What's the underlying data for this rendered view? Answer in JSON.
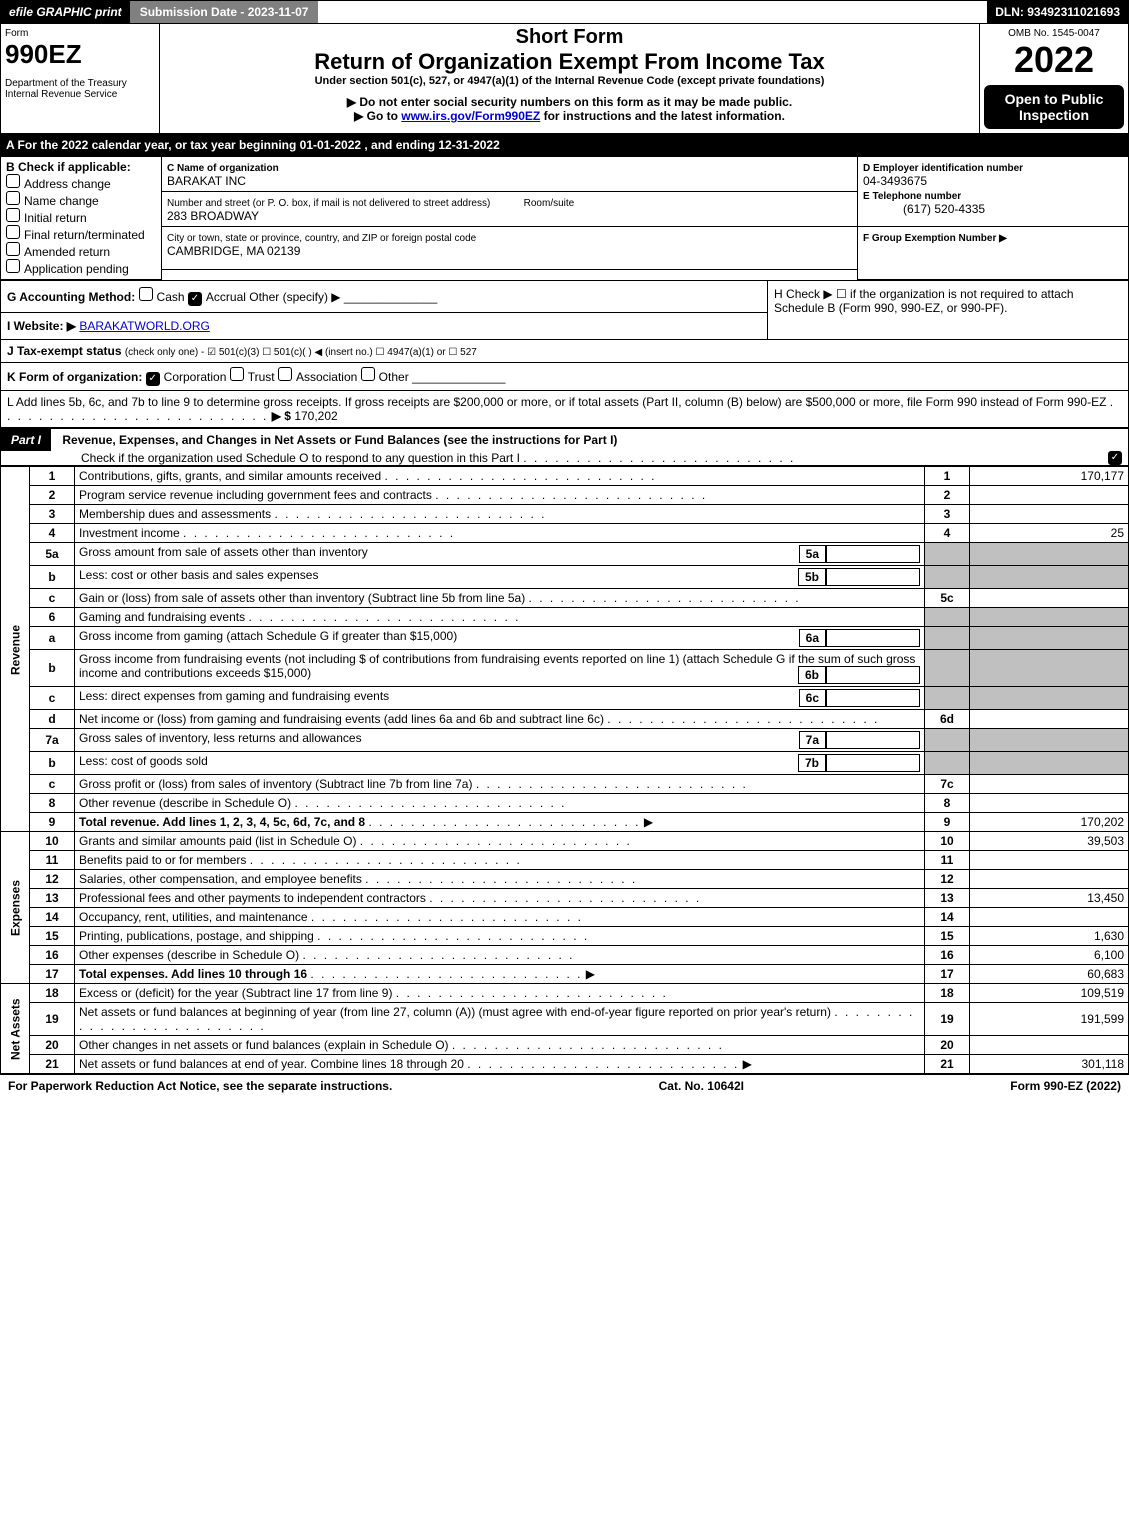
{
  "topBar": {
    "graphicBtn": "efile GRAPHIC print",
    "submissionBtn": "Submission Date - 2023-11-07",
    "dln": "DLN: 93492311021693"
  },
  "header": {
    "formWord": "Form",
    "formName": "990EZ",
    "deptLine1": "Department of the Treasury",
    "deptLine2": "Internal Revenue Service",
    "omb": "OMB No. 1545-0047",
    "year": "2022",
    "titleShort": "Short Form",
    "titleMain": "Return of Organization Exempt From Income Tax",
    "under": "Under section 501(c), 527, or 4947(a)(1) of the Internal Revenue Code (except private foundations)",
    "bullet1": "▶ Do not enter social security numbers on this form as it may be made public.",
    "bullet2pre": "▶ Go to ",
    "bullet2link": "www.irs.gov/Form990EZ",
    "bullet2post": " for instructions and the latest information.",
    "openTo": "Open to Public Inspection"
  },
  "lineA": "A  For the 2022 calendar year, or tax year beginning 01-01-2022 , and ending 12-31-2022",
  "boxB": {
    "heading": "B  Check if applicable:",
    "opts": [
      "Address change",
      "Name change",
      "Initial return",
      "Final return/terminated",
      "Amended return",
      "Application pending"
    ]
  },
  "boxC": {
    "labelName": "C Name of organization",
    "orgName": "BARAKAT INC",
    "labelStreet": "Number and street (or P. O. box, if mail is not delivered to street address)",
    "street": "283 BROADWAY",
    "roomLabel": "Room/suite",
    "labelCity": "City or town, state or province, country, and ZIP or foreign postal code",
    "city": "CAMBRIDGE, MA  02139"
  },
  "boxD": {
    "label": "D Employer identification number",
    "value": "04-3493675"
  },
  "boxE": {
    "label": "E Telephone number",
    "value": "(617) 520-4335"
  },
  "boxF": {
    "label": "F Group Exemption Number  ▶"
  },
  "lineG": {
    "label": "G Accounting Method:",
    "cash": "Cash",
    "accrual": "Accrual",
    "other": "Other (specify) ▶"
  },
  "lineH": {
    "text": "H  Check ▶  ☐  if the organization is not required to attach Schedule B (Form 990, 990-EZ, or 990-PF)."
  },
  "lineI": {
    "label": "I Website: ▶",
    "value": "BARAKATWORLD.ORG"
  },
  "lineJ": {
    "label": "J Tax-exempt status",
    "detail": "(check only one) - ☑ 501(c)(3) ☐ 501(c)(  ) ◀ (insert no.) ☐ 4947(a)(1) or ☐ 527"
  },
  "lineK": {
    "label": "K Form of organization:",
    "corp": "Corporation",
    "trust": "Trust",
    "assoc": "Association",
    "other": "Other"
  },
  "lineL": {
    "text": "L Add lines 5b, 6c, and 7b to line 9 to determine gross receipts. If gross receipts are $200,000 or more, or if total assets (Part II, column (B) below) are $500,000 or more, file Form 990 instead of Form 990-EZ",
    "arrow": "▶ $",
    "value": "170,202"
  },
  "part1": {
    "label": "Part I",
    "title": "Revenue, Expenses, and Changes in Net Assets or Fund Balances (see the instructions for Part I)",
    "checkLine": "Check if the organization used Schedule O to respond to any question in this Part I"
  },
  "sectionLabels": {
    "revenue": "Revenue",
    "expenses": "Expenses",
    "netassets": "Net Assets"
  },
  "lines": [
    {
      "n": "1",
      "label": "Contributions, gifts, grants, and similar amounts received",
      "num": "1",
      "amt": "170,177"
    },
    {
      "n": "2",
      "label": "Program service revenue including government fees and contracts",
      "num": "2",
      "amt": ""
    },
    {
      "n": "3",
      "label": "Membership dues and assessments",
      "num": "3",
      "amt": ""
    },
    {
      "n": "4",
      "label": "Investment income",
      "num": "4",
      "amt": "25"
    },
    {
      "n": "5a",
      "label": "Gross amount from sale of assets other than inventory",
      "sub": "5a",
      "subamt": ""
    },
    {
      "n": "b",
      "label": "Less: cost or other basis and sales expenses",
      "sub": "5b",
      "subamt": ""
    },
    {
      "n": "c",
      "label": "Gain or (loss) from sale of assets other than inventory (Subtract line 5b from line 5a)",
      "num": "5c",
      "amt": ""
    },
    {
      "n": "6",
      "label": "Gaming and fundraising events"
    },
    {
      "n": "a",
      "label": "Gross income from gaming (attach Schedule G if greater than $15,000)",
      "sub": "6a",
      "subamt": ""
    },
    {
      "n": "b",
      "label": "Gross income from fundraising events (not including $          of contributions from fundraising events reported on line 1) (attach Schedule G if the sum of such gross income and contributions exceeds $15,000)",
      "sub": "6b",
      "subamt": ""
    },
    {
      "n": "c",
      "label": "Less: direct expenses from gaming and fundraising events",
      "sub": "6c",
      "subamt": ""
    },
    {
      "n": "d",
      "label": "Net income or (loss) from gaming and fundraising events (add lines 6a and 6b and subtract line 6c)",
      "num": "6d",
      "amt": ""
    },
    {
      "n": "7a",
      "label": "Gross sales of inventory, less returns and allowances",
      "sub": "7a",
      "subamt": ""
    },
    {
      "n": "b",
      "label": "Less: cost of goods sold",
      "sub": "7b",
      "subamt": ""
    },
    {
      "n": "c",
      "label": "Gross profit or (loss) from sales of inventory (Subtract line 7b from line 7a)",
      "num": "7c",
      "amt": ""
    },
    {
      "n": "8",
      "label": "Other revenue (describe in Schedule O)",
      "num": "8",
      "amt": ""
    },
    {
      "n": "9",
      "label": "Total revenue. Add lines 1, 2, 3, 4, 5c, 6d, 7c, and 8",
      "num": "9",
      "amt": "170,202",
      "bold": true,
      "arrow": true
    }
  ],
  "expLines": [
    {
      "n": "10",
      "label": "Grants and similar amounts paid (list in Schedule O)",
      "num": "10",
      "amt": "39,503"
    },
    {
      "n": "11",
      "label": "Benefits paid to or for members",
      "num": "11",
      "amt": ""
    },
    {
      "n": "12",
      "label": "Salaries, other compensation, and employee benefits",
      "num": "12",
      "amt": ""
    },
    {
      "n": "13",
      "label": "Professional fees and other payments to independent contractors",
      "num": "13",
      "amt": "13,450"
    },
    {
      "n": "14",
      "label": "Occupancy, rent, utilities, and maintenance",
      "num": "14",
      "amt": ""
    },
    {
      "n": "15",
      "label": "Printing, publications, postage, and shipping",
      "num": "15",
      "amt": "1,630"
    },
    {
      "n": "16",
      "label": "Other expenses (describe in Schedule O)",
      "num": "16",
      "amt": "6,100"
    },
    {
      "n": "17",
      "label": "Total expenses. Add lines 10 through 16",
      "num": "17",
      "amt": "60,683",
      "bold": true,
      "arrow": true
    }
  ],
  "netLines": [
    {
      "n": "18",
      "label": "Excess or (deficit) for the year (Subtract line 17 from line 9)",
      "num": "18",
      "amt": "109,519"
    },
    {
      "n": "19",
      "label": "Net assets or fund balances at beginning of year (from line 27, column (A)) (must agree with end-of-year figure reported on prior year's return)",
      "num": "19",
      "amt": "191,599"
    },
    {
      "n": "20",
      "label": "Other changes in net assets or fund balances (explain in Schedule O)",
      "num": "20",
      "amt": ""
    },
    {
      "n": "21",
      "label": "Net assets or fund balances at end of year. Combine lines 18 through 20",
      "num": "21",
      "amt": "301,118",
      "arrow": true
    }
  ],
  "footer": {
    "left": "For Paperwork Reduction Act Notice, see the separate instructions.",
    "center": "Cat. No. 10642I",
    "right": "Form 990-EZ (2022)"
  }
}
